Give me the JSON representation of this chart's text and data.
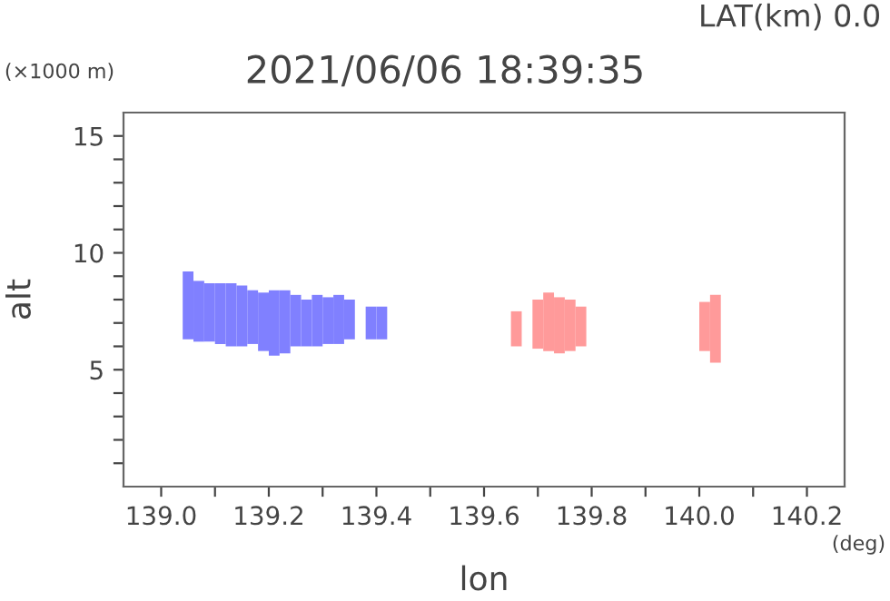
{
  "chart_data": {
    "type": "bar",
    "title": "2021/06/06 18:39:35",
    "subtitle": "LAT(km) 0.0",
    "xlabel": "lon",
    "ylabel": "alt",
    "annotations": [
      "(×1000 m)",
      "(deg)"
    ],
    "xlim": [
      138.93,
      140.27
    ],
    "xticks": [
      {
        "value": 139.0,
        "label": "139.0"
      },
      {
        "value": 139.1,
        "label": null
      },
      {
        "value": 139.2,
        "label": "139.2"
      },
      {
        "value": 139.3,
        "label": null
      },
      {
        "value": 139.4,
        "label": "139.4"
      },
      {
        "value": 139.5,
        "label": null
      },
      {
        "value": 139.6,
        "label": "139.6"
      },
      {
        "value": 139.7,
        "label": null
      },
      {
        "value": 139.8,
        "label": "139.8"
      },
      {
        "value": 139.9,
        "label": null
      },
      {
        "value": 140.0,
        "label": "140.0"
      },
      {
        "value": 140.1,
        "label": null
      },
      {
        "value": 140.2,
        "label": "140.2"
      }
    ],
    "ylim": [
      0,
      16
    ],
    "yticks": [
      {
        "value": 1,
        "label": null
      },
      {
        "value": 2,
        "label": null
      },
      {
        "value": 3,
        "label": null
      },
      {
        "value": 4,
        "label": null
      },
      5,
      {
        "value": 6,
        "label": null
      },
      {
        "value": 7,
        "label": null
      },
      {
        "value": 8,
        "label": null
      },
      {
        "value": 9,
        "label": null
      },
      10,
      {
        "value": 11,
        "label": null
      },
      {
        "value": 12,
        "label": null
      },
      {
        "value": 13,
        "label": null
      },
      {
        "value": 14,
        "label": null
      },
      15
    ],
    "grid": false,
    "series": [
      {
        "color": "#8080ff",
        "x": [
          139.05,
          139.07,
          139.09,
          139.11,
          139.13,
          139.15,
          139.17,
          139.19,
          139.21,
          139.23,
          139.25,
          139.27,
          139.29,
          139.31,
          139.33,
          139.35,
          139.39,
          139.41
        ],
        "base": [
          6.3,
          6.2,
          6.2,
          6.1,
          6.0,
          6.0,
          6.1,
          5.8,
          5.6,
          5.7,
          6.0,
          6.0,
          6.0,
          6.1,
          6.1,
          6.3,
          6.3,
          6.3
        ],
        "values": [
          2.9,
          2.6,
          2.5,
          2.6,
          2.7,
          2.6,
          2.3,
          2.5,
          2.8,
          2.7,
          2.2,
          2.0,
          2.2,
          2.0,
          2.1,
          1.7,
          1.4,
          1.4
        ]
      },
      {
        "color": "#ff9a9a",
        "x": [
          139.66,
          139.7,
          139.72,
          139.74,
          139.76,
          139.78,
          140.01,
          140.03
        ],
        "base": [
          6.0,
          5.9,
          5.8,
          5.7,
          5.8,
          6.0,
          5.8,
          5.3
        ],
        "values": [
          1.5,
          2.1,
          2.5,
          2.4,
          2.2,
          1.7,
          2.1,
          2.9
        ]
      }
    ]
  }
}
